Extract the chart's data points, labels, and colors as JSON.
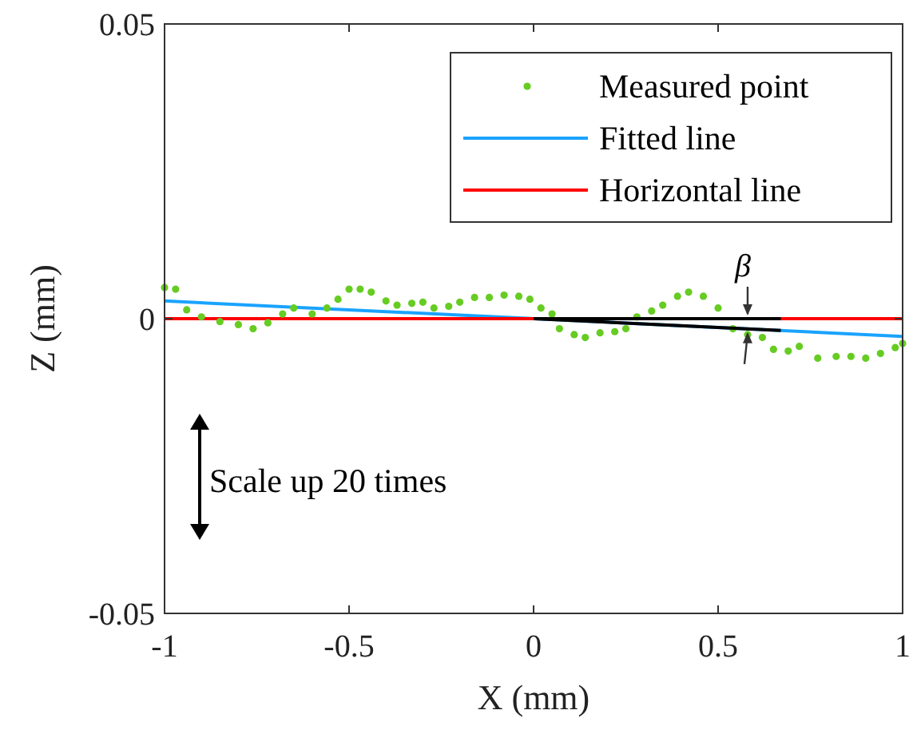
{
  "chart_data": {
    "type": "scatter",
    "xlabel": "X (mm)",
    "ylabel": "Z (mm)",
    "xlim": [
      -1,
      1
    ],
    "xticks": [
      -1,
      -0.5,
      0,
      0.5,
      1
    ],
    "ylim": [
      -0.05,
      0.05
    ],
    "yticks": [
      -0.05,
      0,
      0.05
    ],
    "legend": "top right",
    "series": [
      {
        "name": "Measured point",
        "marker": "circle",
        "color": "#66cc22",
        "x": [
          -1,
          -0.97,
          -0.94,
          -0.9,
          -0.85,
          -0.8,
          -0.76,
          -0.72,
          -0.68,
          -0.65,
          -0.6,
          -0.56,
          -0.53,
          -0.5,
          -0.47,
          -0.44,
          -0.4,
          -0.37,
          -0.33,
          -0.3,
          -0.27,
          -0.23,
          -0.2,
          -0.16,
          -0.12,
          -0.08,
          -0.04,
          -0.01,
          0.02,
          0.05,
          0.07,
          0.11,
          0.14,
          0.18,
          0.22,
          0.25,
          0.28,
          0.32,
          0.35,
          0.39,
          0.42,
          0.46,
          0.5,
          0.54,
          0.58,
          0.62,
          0.65,
          0.69,
          0.72,
          0.77,
          0.82,
          0.86,
          0.9,
          0.94,
          0.98,
          1
        ],
        "values": [
          0.0053,
          0.005,
          0.0015,
          0.0003,
          -0.0005,
          -0.001,
          -0.0017,
          -0.0007,
          0.0008,
          0.0018,
          0.0008,
          0.0018,
          0.0033,
          0.005,
          0.005,
          0.0045,
          0.003,
          0.0023,
          0.0026,
          0.0028,
          0.0018,
          0.0021,
          0.0028,
          0.0036,
          0.0036,
          0.004,
          0.0038,
          0.0033,
          0.0018,
          0.0008,
          -0.0017,
          -0.0027,
          -0.0032,
          -0.0024,
          -0.0022,
          -0.0017,
          0.0003,
          0.0013,
          0.0023,
          0.0038,
          0.0045,
          0.0038,
          0.0018,
          -0.0017,
          -0.0027,
          -0.0032,
          -0.0052,
          -0.0055,
          -0.0047,
          -0.0067,
          -0.0064,
          -0.0064,
          -0.0067,
          -0.0059,
          -0.0049,
          -0.0042
        ]
      },
      {
        "name": "Fitted line",
        "type": "line",
        "line_style": "solid",
        "color": "#1aa3ff",
        "x": [
          -1,
          1
        ],
        "values": [
          0.003,
          -0.003
        ]
      },
      {
        "name": "Horizontal line",
        "type": "line",
        "line_style": "solid",
        "color": "#ff0000",
        "x": [
          -1,
          1
        ],
        "values": [
          0,
          0
        ]
      }
    ],
    "annotations": [
      {
        "text": "β",
        "x": 0.58,
        "y": -0.001
      },
      "Scale up 20 times"
    ]
  }
}
